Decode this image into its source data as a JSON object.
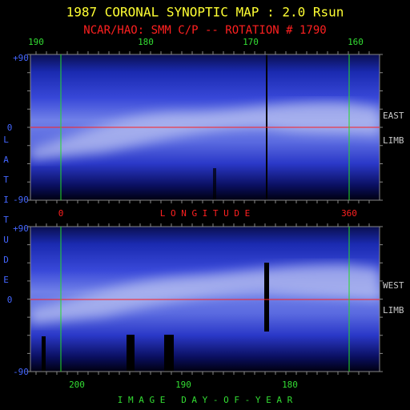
{
  "header": {
    "title": "1987 CORONAL SYNOPTIC MAP : 2.0 Rsun",
    "subtitle": "NCAR/HAO: SMM C/P -- ROTATION # 1790"
  },
  "top_panel": {
    "carrington_labels": [
      "190",
      "180",
      "170",
      "160"
    ],
    "latitude_labels": [
      "+90",
      "0",
      "-90"
    ],
    "side_labels": [
      "EAST",
      "LIMB"
    ],
    "longitude_labels": [
      "0",
      "360"
    ],
    "longitude_title": "L O N G I T U D E"
  },
  "latitude_title": "LATITUDE",
  "bottom_panel": {
    "latitude_labels": [
      "+90",
      "0",
      "-90"
    ],
    "side_labels": [
      "WEST",
      "LIMB"
    ],
    "day_labels": [
      "200",
      "190",
      "180"
    ],
    "day_title": "I M A G E   D A Y - O F - Y E A R"
  }
}
